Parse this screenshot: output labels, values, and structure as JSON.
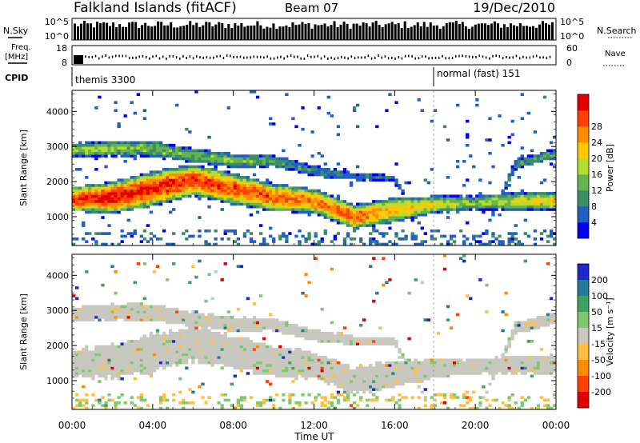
{
  "header": {
    "station": "Falkland Islands (fitACF)",
    "beam": "Beam 07",
    "date": "19/Dec/2010"
  },
  "strips": {
    "nsky_label": "N.Sky",
    "nsky_ticks": [
      "10^5",
      "10^0"
    ],
    "nsearch_label": "N.Search",
    "nsearch_ticks": [
      "10^5",
      "10^0"
    ],
    "freq_label": "Freq.",
    "freq_unit": "[MHz]",
    "freq_ticks": [
      "18",
      "8"
    ],
    "nave_label": "Nave",
    "nave_ticks": [
      "60",
      "0"
    ],
    "cpid_label": "CPID",
    "cpid_segments": [
      {
        "name": "themis",
        "label": "themis 3300",
        "start_hour": 0.0
      },
      {
        "name": "normal",
        "label": "normal (fast) 151",
        "start_hour": 18.0
      }
    ]
  },
  "panels": {
    "power": {
      "ylabel": "Slant Range [km]",
      "yticks": [
        "1000",
        "2000",
        "3000",
        "4000"
      ],
      "colorbar_label": "Power [dB]",
      "colorbar_ticks": [
        "4",
        "8",
        "12",
        "16",
        "20",
        "24",
        "28"
      ],
      "colorbar_colors": [
        "#0000f0",
        "#2060c0",
        "#3c8c64",
        "#64b450",
        "#b4dc32",
        "#ffc800",
        "#ff8c00",
        "#ff4000",
        "#e00000"
      ]
    },
    "velocity": {
      "ylabel": "Slant Range [km]",
      "yticks": [
        "1000",
        "2000",
        "3000",
        "4000"
      ],
      "colorbar_label": "Velocity [m s⁻¹]",
      "colorbar_ticks": [
        "200",
        "100",
        "50",
        "15",
        "-15",
        "-50",
        "-100",
        "-200"
      ],
      "colorbar_colors": [
        "#1e28c8",
        "#287898",
        "#40a060",
        "#80c870",
        "#c8c8c0",
        "#ffc040",
        "#ff8c00",
        "#ff4000",
        "#e00000"
      ]
    }
  },
  "xaxis": {
    "ticks": [
      "00:00",
      "04:00",
      "08:00",
      "12:00",
      "16:00",
      "20:00",
      "00:00"
    ],
    "label": "Time UT"
  },
  "chart_data": [
    {
      "type": "heatmap",
      "name": "power",
      "x": "time UT (hours 0-24)",
      "y": "slant range km",
      "ylim": [
        180,
        4600
      ],
      "xlim": [
        0,
        24
      ],
      "zlim": [
        0,
        30
      ],
      "bands": [
        {
          "t": [
            0,
            2,
            4,
            6,
            8,
            10,
            12,
            14,
            16,
            18,
            20,
            22,
            24
          ],
          "center_km": [
            1500,
            1550,
            1800,
            2050,
            1800,
            1550,
            1450,
            1000,
            1200,
            1350,
            1400,
            1450,
            1450
          ],
          "width_km": [
            700,
            900,
            1000,
            900,
            900,
            800,
            700,
            700,
            700,
            500,
            400,
            500,
            500
          ],
          "peak_db": [
            26,
            28,
            27,
            26,
            25,
            24,
            22,
            24,
            20,
            16,
            12,
            16,
            18
          ]
        },
        {
          "t": [
            0,
            2,
            4,
            6,
            8,
            10,
            12,
            14,
            16,
            18,
            20,
            22,
            24
          ],
          "center_km": [
            2900,
            2950,
            2950,
            2750,
            2600,
            2600,
            2300,
            2150,
            2100,
            0,
            0,
            2500,
            2800
          ],
          "width_km": [
            400,
            450,
            450,
            400,
            400,
            350,
            300,
            250,
            200,
            0,
            0,
            300,
            300
          ],
          "peak_db": [
            14,
            13,
            12,
            12,
            12,
            10,
            8,
            6,
            6,
            0,
            0,
            8,
            10
          ]
        }
      ]
    },
    {
      "type": "heatmap",
      "name": "velocity",
      "x": "time UT (hours 0-24)",
      "y": "slant range km",
      "ylim": [
        180,
        4600
      ],
      "xlim": [
        0,
        24
      ],
      "zlim": [
        -250,
        250
      ],
      "dominant_range_m_s": [
        -15,
        15
      ]
    }
  ]
}
